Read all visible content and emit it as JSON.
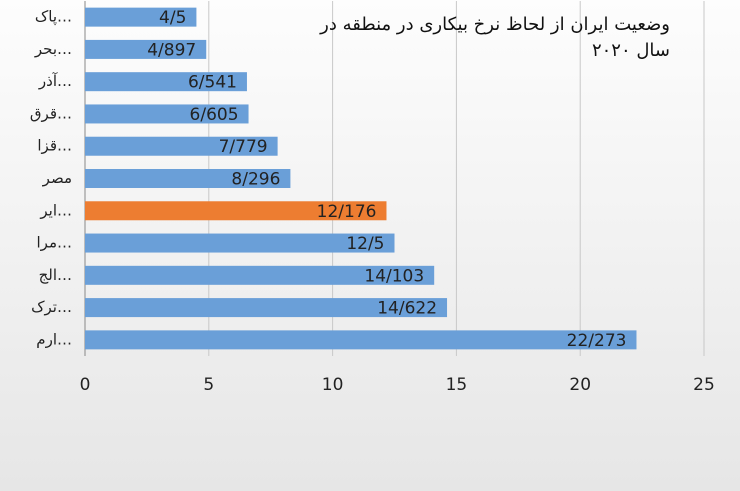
{
  "chart_data": {
    "type": "bar",
    "orientation": "horizontal",
    "title": "وضعیت ایران از لحاظ نرخ بیکاری در منطقه در سال ۲۰۲۰",
    "categories": [
      "پاک…",
      "بحر…",
      "آذر…",
      "قرق…",
      "قزا…",
      "مصر",
      "ایر…",
      "مرا…",
      "الج…",
      "ترک…",
      "ارم…"
    ],
    "values": [
      4.5,
      4.897,
      6.541,
      6.605,
      7.779,
      8.296,
      12.176,
      12.5,
      14.103,
      14.622,
      22.273
    ],
    "value_labels": [
      "4/5",
      "4/897",
      "6/541",
      "6/605",
      "7/779",
      "8/296",
      "12/176",
      "12/5",
      "14/103",
      "14/622",
      "22/273"
    ],
    "colors": [
      "#6a9fd8",
      "#6a9fd8",
      "#6a9fd8",
      "#6a9fd8",
      "#6a9fd8",
      "#6a9fd8",
      "#ed7d31",
      "#6a9fd8",
      "#6a9fd8",
      "#6a9fd8",
      "#6a9fd8"
    ],
    "xlim": [
      0,
      25
    ],
    "xticks": [
      0,
      5,
      10,
      15,
      20,
      25
    ],
    "grid": true
  }
}
